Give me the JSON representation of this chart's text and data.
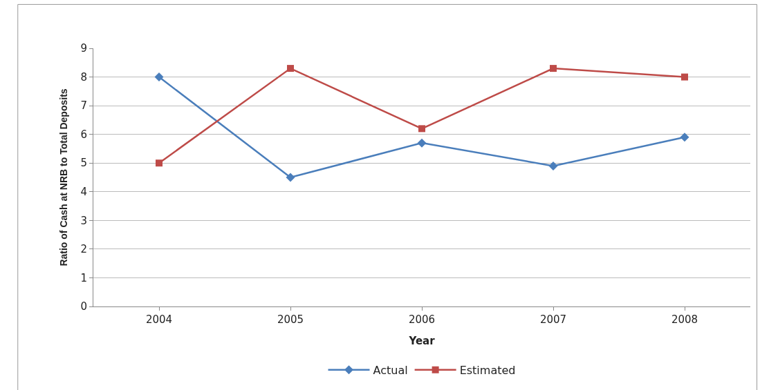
{
  "chart_data": {
    "type": "line",
    "xlabel": "Year",
    "ylabel": "Ratio of Cash at NRB to Total Deposits",
    "categories": [
      "2004",
      "2005",
      "2006",
      "2007",
      "2008"
    ],
    "series": [
      {
        "name": "Actual",
        "color": "#4a7ebb",
        "values": [
          8.0,
          4.5,
          5.7,
          4.9,
          5.9
        ],
        "marker": "diamond"
      },
      {
        "name": "Estimated",
        "color": "#be4b48",
        "values": [
          5.0,
          8.3,
          6.2,
          8.3,
          8.0
        ],
        "marker": "square"
      }
    ],
    "ylim": [
      0,
      9
    ],
    "yticks": [
      0,
      1,
      2,
      3,
      4,
      5,
      6,
      7,
      8,
      9
    ],
    "grid": "y",
    "legend": "bottom"
  }
}
